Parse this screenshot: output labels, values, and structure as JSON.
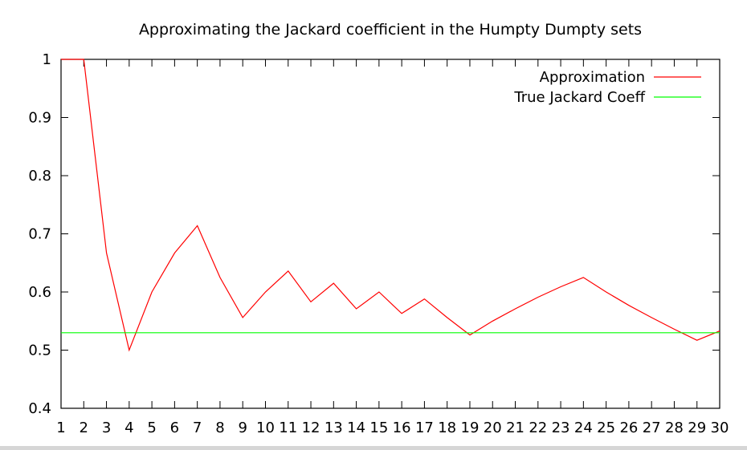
{
  "chart_data": {
    "type": "line",
    "title": "Approximating the Jackard coefficient in the Humpty Dumpty sets",
    "xlabel": "",
    "ylabel": "",
    "xlim": [
      1,
      30
    ],
    "ylim": [
      0.4,
      1
    ],
    "x_ticks": [
      "1",
      "2",
      "3",
      "4",
      "5",
      "6",
      "7",
      "8",
      "9",
      "10",
      "11",
      "12",
      "13",
      "14",
      "15",
      "16",
      "17",
      "18",
      "19",
      "20",
      "21",
      "22",
      "23",
      "24",
      "25",
      "26",
      "27",
      "28",
      "29",
      "30"
    ],
    "y_ticks": [
      "0.4",
      "0.5",
      "0.6",
      "0.7",
      "0.8",
      "0.9",
      "1"
    ],
    "legend_position": "top-right",
    "grid": false,
    "series": [
      {
        "name": "Approximation",
        "color": "#ff0000",
        "x": [
          1,
          2,
          3,
          4,
          5,
          6,
          7,
          8,
          9,
          10,
          11,
          12,
          13,
          14,
          15,
          16,
          17,
          18,
          19,
          20,
          21,
          22,
          23,
          24,
          25,
          26,
          27,
          28,
          29,
          30
        ],
        "values": [
          1,
          1,
          0.667,
          0.5,
          0.6,
          0.667,
          0.714,
          0.625,
          0.556,
          0.6,
          0.636,
          0.583,
          0.615,
          0.571,
          0.6,
          0.563,
          0.588,
          0.556,
          0.526,
          0.55,
          0.571,
          0.591,
          0.609,
          0.625,
          0.6,
          0.577,
          0.556,
          0.536,
          0.517,
          0.533
        ]
      },
      {
        "name": "True Jackard Coeff",
        "color": "#00ff00",
        "x": [
          1,
          30
        ],
        "values": [
          0.53,
          0.53
        ]
      }
    ]
  }
}
